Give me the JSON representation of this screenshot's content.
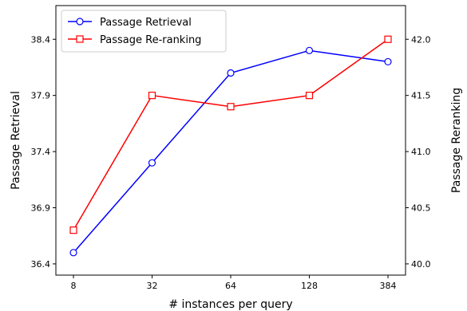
{
  "chart_data": {
    "type": "line",
    "categories": [
      "8",
      "32",
      "64",
      "128",
      "384"
    ],
    "xlabel": "# instances per query",
    "ylabel_left": "Passage Retrieval",
    "ylabel_right": "Passage Reranking",
    "y_left_ticks": [
      "36.4",
      "36.9",
      "37.4",
      "37.9",
      "38.4"
    ],
    "y_right_ticks": [
      "40.0",
      "40.5",
      "41.0",
      "41.5",
      "42.0"
    ],
    "ylim_left": [
      36.3,
      38.7
    ],
    "ylim_right": [
      39.9,
      42.3
    ],
    "legend_position": "top-left",
    "grid": false,
    "series": [
      {
        "name": "Passage Retrieval",
        "axis": "left",
        "color": "#0000ff",
        "marker": "circle",
        "values": [
          36.5,
          37.3,
          38.1,
          38.3,
          38.2
        ]
      },
      {
        "name": "Passage Re-ranking",
        "axis": "right",
        "color": "#ff0000",
        "marker": "square",
        "values": [
          40.3,
          41.5,
          41.4,
          41.5,
          42.0
        ]
      }
    ]
  }
}
